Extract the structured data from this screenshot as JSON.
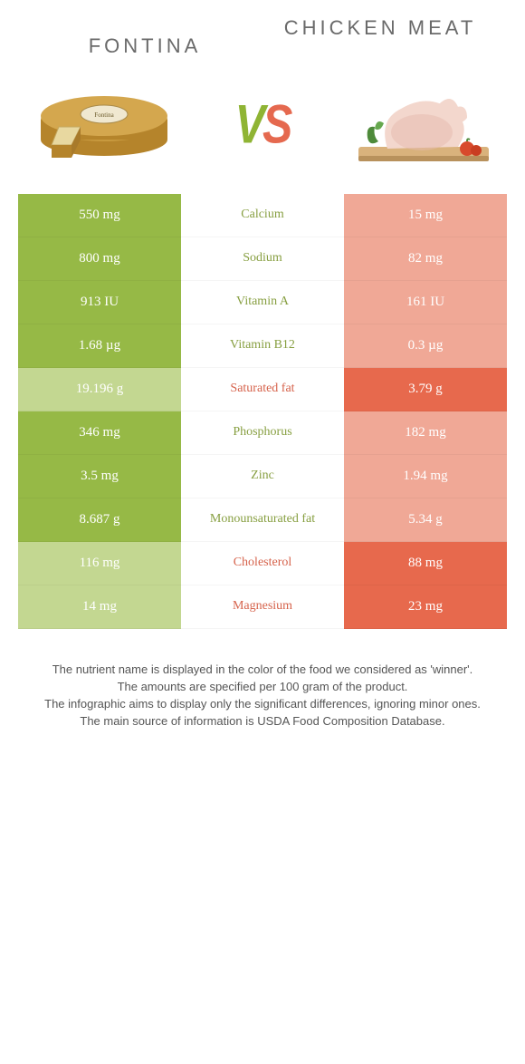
{
  "foods": {
    "left": {
      "name": "Fontina"
    },
    "right": {
      "name": "Chicken meat"
    }
  },
  "vs": "VS",
  "colors": {
    "left_win": "#96b946",
    "left_lose": "#c3d791",
    "right_win": "#e7694d",
    "right_lose": "#f0a896",
    "mid_green": "#879f41",
    "mid_orange": "#d6634c",
    "cheese_rind": "#b5842b",
    "cheese_face": "#e8d8a0",
    "board": "#d9b27c",
    "chicken_skin": "#f3d7cd",
    "chicken_shadow": "#e5b9ad",
    "leaf": "#4e8a3a",
    "tomato": "#d84a2c"
  },
  "rows": [
    {
      "nutrient": "Calcium",
      "left": "550 mg",
      "right": "15 mg",
      "winner": "left"
    },
    {
      "nutrient": "Sodium",
      "left": "800 mg",
      "right": "82 mg",
      "winner": "left"
    },
    {
      "nutrient": "Vitamin A",
      "left": "913 IU",
      "right": "161 IU",
      "winner": "left"
    },
    {
      "nutrient": "Vitamin B12",
      "left": "1.68 µg",
      "right": "0.3 µg",
      "winner": "left"
    },
    {
      "nutrient": "Saturated fat",
      "left": "19.196 g",
      "right": "3.79 g",
      "winner": "right"
    },
    {
      "nutrient": "Phosphorus",
      "left": "346 mg",
      "right": "182 mg",
      "winner": "left"
    },
    {
      "nutrient": "Zinc",
      "left": "3.5 mg",
      "right": "1.94 mg",
      "winner": "left"
    },
    {
      "nutrient": "Monounsaturated fat",
      "left": "8.687 g",
      "right": "5.34 g",
      "winner": "left"
    },
    {
      "nutrient": "Cholesterol",
      "left": "116 mg",
      "right": "88 mg",
      "winner": "right"
    },
    {
      "nutrient": "Magnesium",
      "left": "14 mg",
      "right": "23 mg",
      "winner": "right"
    }
  ],
  "footnotes": [
    "The nutrient name is displayed in the color of the food we considered as 'winner'.",
    "The amounts are specified per 100 gram of the product.",
    "The infographic aims to display only the significant differences, ignoring minor ones.",
    "The main source of information is USDA Food Composition Database."
  ]
}
